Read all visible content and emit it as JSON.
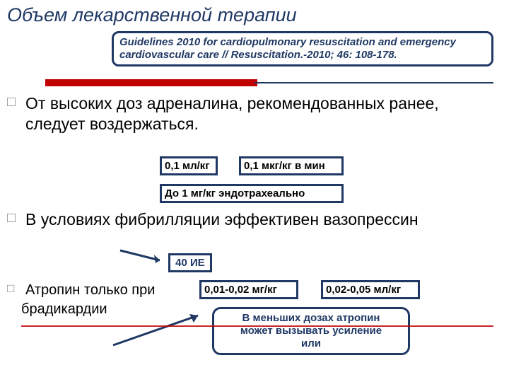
{
  "colors": {
    "navy": "#1f3864",
    "red": "#c00000",
    "white": "#ffffff",
    "black": "#000000"
  },
  "title": "Объем лекарственной терапии",
  "citation": "Guidelines 2010 for cardiopulmonary resuscitation and emergency cardiovascular care // Resuscitation.-2010; 46: 108-178.",
  "bullets": [
    {
      "marker": "□",
      "text": "От высоких доз адреналина, рекомендованных ранее, следует воздержаться.",
      "size": "normal"
    },
    {
      "marker": "□",
      "text": "В условиях фибрилляции эффективен вазопрессин",
      "size": "normal"
    },
    {
      "marker": "□",
      "text": "Атропин только при",
      "size": "small"
    }
  ],
  "sub_line": "брадикардии",
  "boxes": {
    "adren1": "0,1 мл/кг",
    "adren2": "0,1 мкг/кг в мин",
    "adren3": "До 1 мг/кг эндотрахеально",
    "vaso": "40 ИЕ",
    "atro1": "0,01-0,02 мг/кг",
    "atro2": "0,02-0,05 мл/кг"
  },
  "note": "В меньших дозах атропин\nможет вызывать усиление\nили",
  "typography": {
    "title_fontsize": 27,
    "bullet_fontsize": 23,
    "bullet_small_fontsize": 20,
    "box_fontsize": 15
  }
}
